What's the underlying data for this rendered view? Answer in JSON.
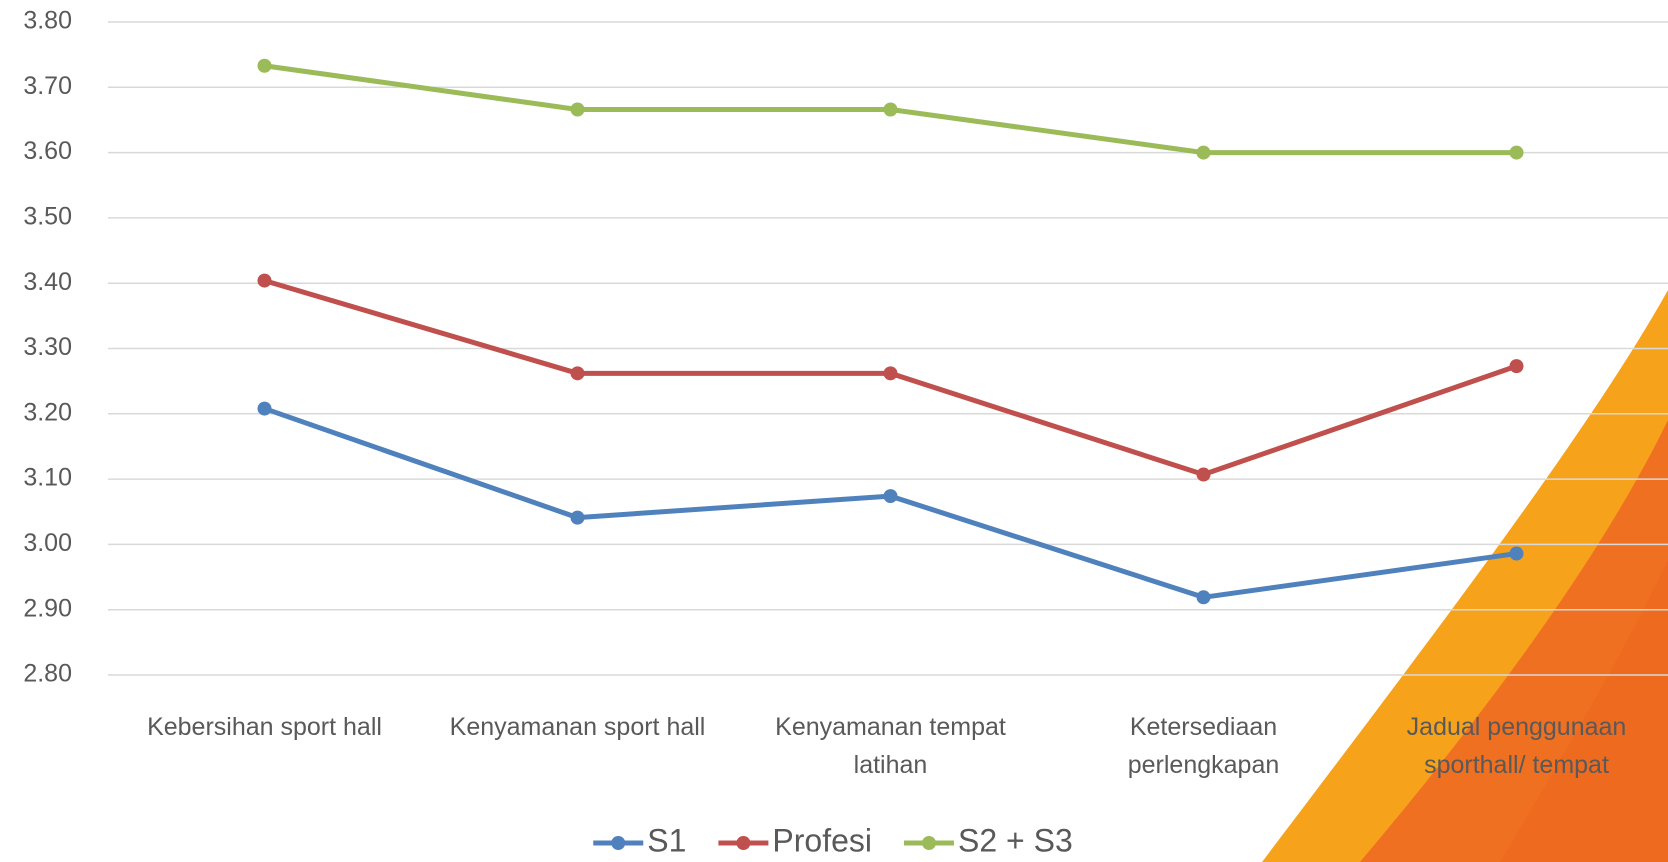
{
  "chart_data": {
    "type": "line",
    "categories": [
      "Kebersihan sport hall",
      "Kenyamanan sport hall",
      "Kenyamanan tempat latihan",
      "Ketersediaan perlengkapan",
      "Jadual penggunaan sporthall/ tempat"
    ],
    "series": [
      {
        "name": "S1",
        "color": "#4f81bd",
        "values": [
          3.208,
          3.041,
          3.074,
          2.919,
          2.986
        ]
      },
      {
        "name": "Profesi",
        "color": "#c0504d",
        "values": [
          3.404,
          3.262,
          3.262,
          3.107,
          3.273
        ]
      },
      {
        "name": "S2 + S3",
        "color": "#9bbb59",
        "values": [
          3.733,
          3.666,
          3.666,
          3.6,
          3.6
        ]
      }
    ],
    "ylim": [
      2.8,
      3.8
    ],
    "yticks": [
      {
        "value": 2.8,
        "label": "2.80"
      },
      {
        "value": 2.9,
        "label": "2.90"
      },
      {
        "value": 3,
        "label": "3.00"
      },
      {
        "value": 3.1,
        "label": "3.10"
      },
      {
        "value": 3.2,
        "label": "3.20"
      },
      {
        "value": 3.3,
        "label": "3.30"
      },
      {
        "value": 3.4,
        "label": "3.40"
      },
      {
        "value": 3.5,
        "label": "3.50"
      },
      {
        "value": 3.6,
        "label": "3.60"
      },
      {
        "value": 3.7,
        "label": "3.70"
      },
      {
        "value": 3.8,
        "label": "3.80"
      }
    ],
    "grid": true,
    "legend": "bottom"
  }
}
